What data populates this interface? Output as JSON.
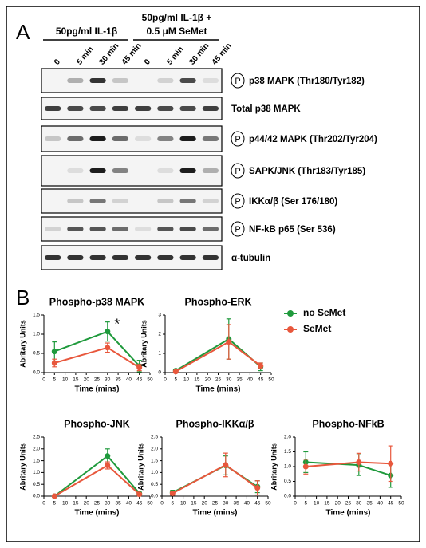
{
  "panel_a": {
    "label": "A",
    "groups": [
      {
        "lines": [
          "50pg/ml IL-1β"
        ],
        "lanes": [
          "0",
          "5 min",
          "30 min",
          "45 min"
        ]
      },
      {
        "lines": [
          "50pg/ml IL-1β +",
          "0.5 μM SeMet"
        ],
        "lanes": [
          "0",
          "5 min",
          "30 min",
          "45 min"
        ]
      }
    ],
    "phospho_symbol": "P",
    "blots": [
      {
        "label": "p38 MAPK (Thr180/Tyr182)",
        "phospho": true,
        "bands": [
          0,
          0.3,
          0.85,
          0.2,
          0,
          0.15,
          0.75,
          0.1
        ]
      },
      {
        "label": "Total p38 MAPK",
        "phospho": false,
        "bands": [
          0.8,
          0.75,
          0.75,
          0.8,
          0.8,
          0.75,
          0.75,
          0.8
        ]
      },
      {
        "label": "p44/42 MAPK (Thr202/Tyr204)",
        "phospho": true,
        "bands": [
          0.2,
          0.6,
          0.95,
          0.6,
          0.1,
          0.5,
          0.95,
          0.55
        ]
      },
      {
        "label": "SAPK/JNK (Thr183/Tyr185)",
        "phospho": true,
        "bands": [
          0,
          0.1,
          0.95,
          0.5,
          0,
          0.1,
          0.95,
          0.3
        ]
      },
      {
        "label": "IKKα/β (Ser 176/180)",
        "phospho": true,
        "bands": [
          0,
          0.2,
          0.55,
          0.15,
          0,
          0.2,
          0.55,
          0.15
        ]
      },
      {
        "label": "NF-kB p65 (Ser 536)",
        "phospho": true,
        "bands": [
          0.15,
          0.7,
          0.7,
          0.6,
          0.1,
          0.7,
          0.75,
          0.6
        ]
      },
      {
        "label": "α-tubulin",
        "phospho": false,
        "bands": [
          0.85,
          0.85,
          0.85,
          0.85,
          0.85,
          0.85,
          0.85,
          0.85
        ]
      }
    ]
  },
  "panel_b": {
    "label": "B",
    "legend": [
      {
        "name": "no SeMet",
        "color": "#1f9a3c"
      },
      {
        "name": "SeMet",
        "color": "#e8573c"
      }
    ]
  },
  "chart_data": [
    {
      "type": "line",
      "title": "Phospho-p38 MAPK",
      "xlabel": "Time (mins)",
      "ylabel": "Abritary Units",
      "annotation": "*",
      "x": [
        5,
        30,
        45
      ],
      "xlim": [
        0,
        50
      ],
      "xticks": [
        0,
        5,
        10,
        15,
        20,
        25,
        30,
        35,
        40,
        45,
        50
      ],
      "ylim": [
        0,
        1.5
      ],
      "yticks": [
        {
          "value": 0,
          "label": "0.0"
        },
        0.5,
        {
          "value": 1,
          "label": "1.0"
        },
        1.5
      ],
      "series": [
        {
          "values": [
            0.55,
            1.07,
            0.17
          ],
          "errors": [
            0.25,
            0.25,
            0.15
          ]
        },
        {
          "values": [
            0.25,
            0.65,
            0.13
          ],
          "errors": [
            0.1,
            0.12,
            0.08
          ]
        }
      ]
    },
    {
      "type": "line",
      "title": "Phospho-ERK",
      "xlabel": "Time (mins)",
      "ylabel": "Abritary Units",
      "x": [
        5,
        30,
        45
      ],
      "xlim": [
        0,
        50
      ],
      "xticks": [
        0,
        5,
        10,
        15,
        20,
        25,
        30,
        35,
        40,
        45,
        50
      ],
      "ylim": [
        0,
        3
      ],
      "yticks": [
        0,
        1,
        2,
        3
      ],
      "series": [
        {
          "values": [
            0.1,
            1.75,
            0.3
          ],
          "errors": [
            0.05,
            1.05,
            0.2
          ]
        },
        {
          "values": [
            0.05,
            1.6,
            0.35
          ],
          "errors": [
            0.05,
            0.9,
            0.15
          ]
        }
      ]
    },
    {
      "type": "line",
      "title": "Phospho-JNK",
      "xlabel": "Time (mins)",
      "ylabel": "Abritary Units",
      "x": [
        5,
        30,
        45
      ],
      "xlim": [
        0,
        50
      ],
      "xticks": [
        0,
        5,
        10,
        15,
        20,
        25,
        30,
        35,
        40,
        45,
        50
      ],
      "ylim": [
        0,
        2.5
      ],
      "yticks": [
        {
          "value": 0,
          "label": "0.0"
        },
        0.5,
        {
          "value": 1,
          "label": "1.0"
        },
        1.5,
        {
          "value": 2,
          "label": "2.0"
        },
        2.5
      ],
      "series": [
        {
          "values": [
            0,
            1.7,
            0.12
          ],
          "errors": [
            0.02,
            0.3,
            0.05
          ]
        },
        {
          "values": [
            0,
            1.3,
            0.08
          ],
          "errors": [
            0.02,
            0.15,
            0.03
          ]
        }
      ]
    },
    {
      "type": "line",
      "title": "Phospho-IKKα/β",
      "xlabel": "Time (mins)",
      "ylabel": "Abritary Units",
      "x": [
        5,
        30,
        45
      ],
      "xlim": [
        0,
        50
      ],
      "xticks": [
        0,
        5,
        10,
        15,
        20,
        25,
        30,
        35,
        40,
        45,
        50
      ],
      "ylim": [
        0,
        2.5
      ],
      "yticks": [
        {
          "value": 0,
          "label": "0.0"
        },
        0.5,
        {
          "value": 1,
          "label": "1.0"
        },
        1.5,
        {
          "value": 2,
          "label": "2.0"
        },
        2.5
      ],
      "series": [
        {
          "values": [
            0.15,
            1.3,
            0.4
          ],
          "errors": [
            0.1,
            0.4,
            0.25
          ]
        },
        {
          "values": [
            0.12,
            1.32,
            0.35
          ],
          "errors": [
            0.08,
            0.5,
            0.3
          ]
        }
      ]
    },
    {
      "type": "line",
      "title": "Phospho-NFkB",
      "xlabel": "Time (mins)",
      "ylabel": "Abritary Units",
      "x": [
        5,
        30,
        45
      ],
      "xlim": [
        0,
        50
      ],
      "xticks": [
        0,
        5,
        10,
        15,
        20,
        25,
        30,
        35,
        40,
        45,
        50
      ],
      "ylim": [
        0,
        2
      ],
      "yticks": [
        {
          "value": 0,
          "label": "0.0"
        },
        0.5,
        {
          "value": 1,
          "label": "1.0"
        },
        1.5,
        {
          "value": 2,
          "label": "2.0"
        }
      ],
      "series": [
        {
          "values": [
            1.15,
            1.05,
            0.7
          ],
          "errors": [
            0.35,
            0.35,
            0.4
          ]
        },
        {
          "values": [
            1,
            1.15,
            1.1
          ],
          "errors": [
            0.25,
            0.3,
            0.6
          ]
        }
      ]
    }
  ]
}
